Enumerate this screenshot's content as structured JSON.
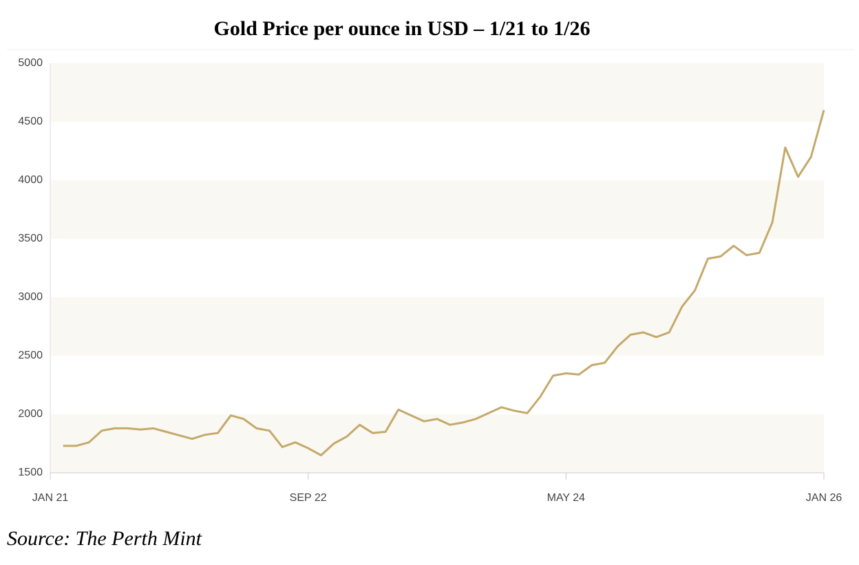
{
  "chart_data": {
    "type": "line",
    "title": "Gold Price per ounce in USD – 1/21 to 1/26",
    "source": "Source: The Perth Mint",
    "x": [
      "2021-02",
      "2021-03",
      "2021-04",
      "2021-05",
      "2021-06",
      "2021-07",
      "2021-08",
      "2021-09",
      "2021-10",
      "2021-11",
      "2021-12",
      "2022-01",
      "2022-02",
      "2022-03",
      "2022-04",
      "2022-05",
      "2022-06",
      "2022-07",
      "2022-08",
      "2022-09",
      "2022-10",
      "2022-11",
      "2022-12",
      "2023-01",
      "2023-02",
      "2023-03",
      "2023-04",
      "2023-05",
      "2023-06",
      "2023-07",
      "2023-08",
      "2023-09",
      "2023-10",
      "2023-11",
      "2023-12",
      "2024-01",
      "2024-02",
      "2024-03",
      "2024-04",
      "2024-05",
      "2024-06",
      "2024-07",
      "2024-08",
      "2024-09",
      "2024-10",
      "2024-11",
      "2024-12",
      "2025-01",
      "2025-02",
      "2025-03",
      "2025-04",
      "2025-05",
      "2025-06",
      "2025-07",
      "2025-08",
      "2025-09",
      "2025-10",
      "2025-11",
      "2025-12",
      "2026-01"
    ],
    "values": [
      1730,
      1730,
      1760,
      1860,
      1880,
      1880,
      1870,
      1880,
      1850,
      1820,
      1790,
      1825,
      1840,
      1990,
      1960,
      1880,
      1860,
      1720,
      1760,
      1710,
      1650,
      1750,
      1810,
      1910,
      1840,
      1850,
      2040,
      1990,
      1940,
      1960,
      1910,
      1930,
      1960,
      2010,
      2060,
      2030,
      2010,
      2150,
      2330,
      2350,
      2340,
      2420,
      2440,
      2580,
      2680,
      2700,
      2660,
      2700,
      2920,
      3060,
      3330,
      3350,
      3440,
      3360,
      3380,
      3640,
      4280,
      4030,
      4200,
      4600
    ],
    "color": "#c4a96a",
    "xlim": [
      "2021-01",
      "2026-01"
    ],
    "xticks": [
      {
        "value": "2021-01",
        "label": "JAN 21"
      },
      {
        "value": "2022-09",
        "label": "SEP 22"
      },
      {
        "value": "2024-05",
        "label": "MAY 24"
      },
      {
        "value": "2026-01",
        "label": "JAN 26"
      }
    ],
    "ylim": [
      1500,
      5000
    ],
    "yticks": [
      1500,
      2000,
      2500,
      3000,
      3500,
      4000,
      4500,
      5000
    ],
    "band_fill": "#faf8f3"
  }
}
